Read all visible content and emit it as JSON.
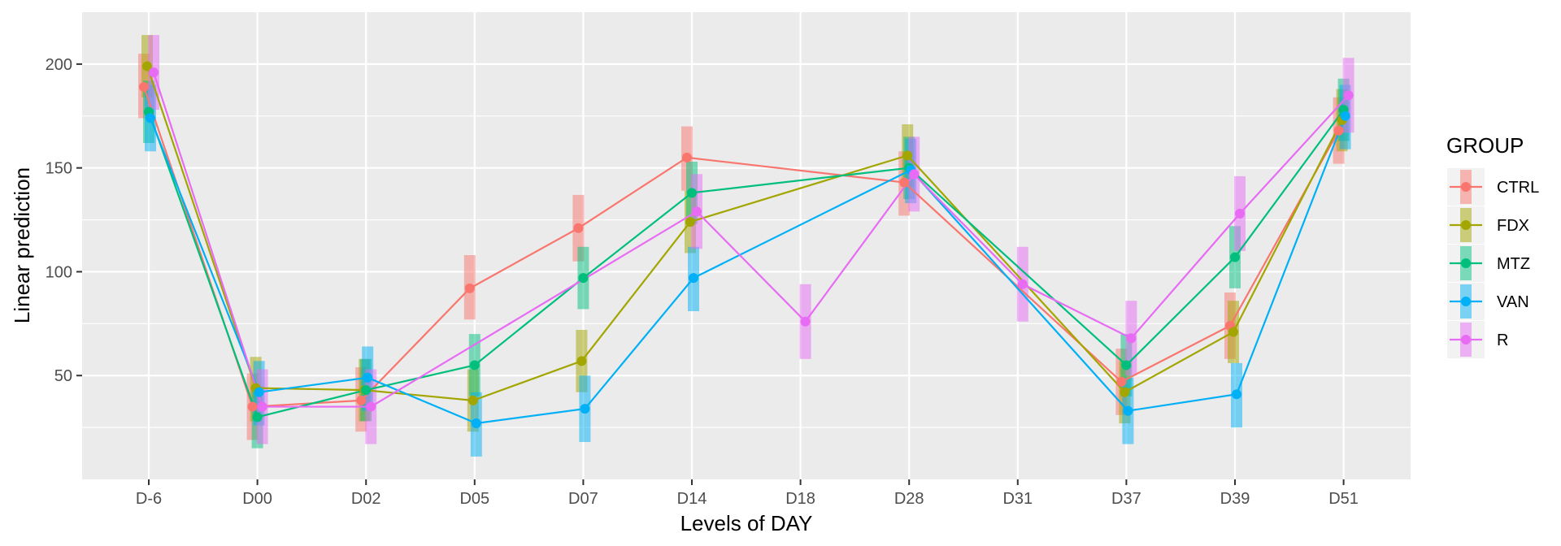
{
  "chart_data": {
    "type": "line",
    "xlabel": "Levels of DAY",
    "ylabel": "Linear prediction",
    "categories": [
      "D-6",
      "D00",
      "D02",
      "D05",
      "D07",
      "D14",
      "D18",
      "D28",
      "D31",
      "D37",
      "D39",
      "D51"
    ],
    "ylim": [
      0,
      225
    ],
    "yticks": [
      50,
      100,
      150,
      200
    ],
    "grid": true,
    "error_bars": "vertical interval bars",
    "legend": {
      "title": "GROUP",
      "position": "right"
    },
    "series": [
      {
        "name": "CTRL",
        "color": "#F8766D",
        "values": [
          189,
          35,
          38,
          92,
          121,
          155,
          null,
          143,
          null,
          47,
          74,
          168
        ],
        "lower": [
          174,
          19,
          23,
          77,
          105,
          139,
          null,
          127,
          null,
          31,
          58,
          152
        ],
        "upper": [
          205,
          51,
          54,
          108,
          137,
          170,
          null,
          158,
          null,
          63,
          90,
          184
        ]
      },
      {
        "name": "FDX",
        "color": "#A3A500",
        "values": [
          199,
          44,
          43,
          38,
          57,
          124,
          null,
          156,
          null,
          42,
          71,
          173
        ],
        "lower": [
          184,
          28,
          28,
          23,
          42,
          109,
          null,
          141,
          null,
          27,
          56,
          158
        ],
        "upper": [
          214,
          59,
          58,
          53,
          72,
          139,
          null,
          171,
          null,
          57,
          86,
          188
        ]
      },
      {
        "name": "MTZ",
        "color": "#00BF7D",
        "values": [
          177,
          30,
          43,
          55,
          97,
          138,
          null,
          150,
          null,
          55,
          107,
          178
        ],
        "lower": [
          162,
          15,
          28,
          40,
          82,
          123,
          null,
          135,
          null,
          40,
          92,
          163
        ],
        "upper": [
          192,
          45,
          58,
          70,
          112,
          153,
          null,
          165,
          null,
          70,
          122,
          193
        ]
      },
      {
        "name": "VAN",
        "color": "#00B0F6",
        "values": [
          174,
          42,
          49,
          27,
          34,
          97,
          null,
          149,
          null,
          33,
          41,
          175
        ],
        "lower": [
          158,
          26,
          33,
          11,
          18,
          81,
          null,
          133,
          null,
          17,
          25,
          159
        ],
        "upper": [
          190,
          57,
          64,
          42,
          50,
          112,
          null,
          164,
          null,
          49,
          56,
          190
        ]
      },
      {
        "name": "R",
        "color": "#E76BF3",
        "values": [
          196,
          35,
          35,
          null,
          null,
          129,
          76,
          147,
          94,
          68,
          128,
          185
        ],
        "lower": [
          178,
          17,
          17,
          null,
          null,
          111,
          58,
          129,
          76,
          50,
          110,
          167
        ],
        "upper": [
          214,
          53,
          53,
          null,
          null,
          147,
          94,
          165,
          112,
          86,
          146,
          203
        ]
      }
    ]
  }
}
